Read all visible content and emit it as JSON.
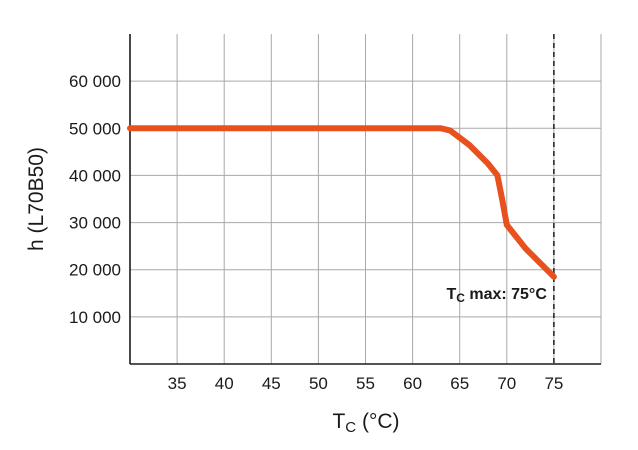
{
  "chart_data": {
    "type": "line",
    "title": "",
    "xlabel_main": "T",
    "xlabel_sub": "C",
    "xlabel_unit": " (°C)",
    "ylabel": "h (L70B50)",
    "xlim": [
      30,
      80
    ],
    "ylim": [
      0,
      70000
    ],
    "xticks": [
      35,
      40,
      45,
      50,
      55,
      60,
      65,
      70,
      75
    ],
    "yticks": [
      10000,
      20000,
      30000,
      40000,
      50000,
      60000
    ],
    "ytick_labels": [
      "10 000",
      "20 000",
      "30 000",
      "40 000",
      "50 000",
      "60 000"
    ],
    "grid": true,
    "series": [
      {
        "color": "#e8501e",
        "x": [
          30,
          63,
          64,
          66,
          68,
          69,
          69.5,
          70,
          72,
          75
        ],
        "y": [
          50000,
          50000,
          49500,
          46500,
          42500,
          40000,
          35000,
          29500,
          24500,
          18500
        ]
      }
    ],
    "reference_line": {
      "x": 75,
      "style": "dashed"
    },
    "annotation": {
      "main": "T",
      "sub": "C",
      "rest": " max: 75°C",
      "x": 75,
      "y": 18500
    }
  }
}
